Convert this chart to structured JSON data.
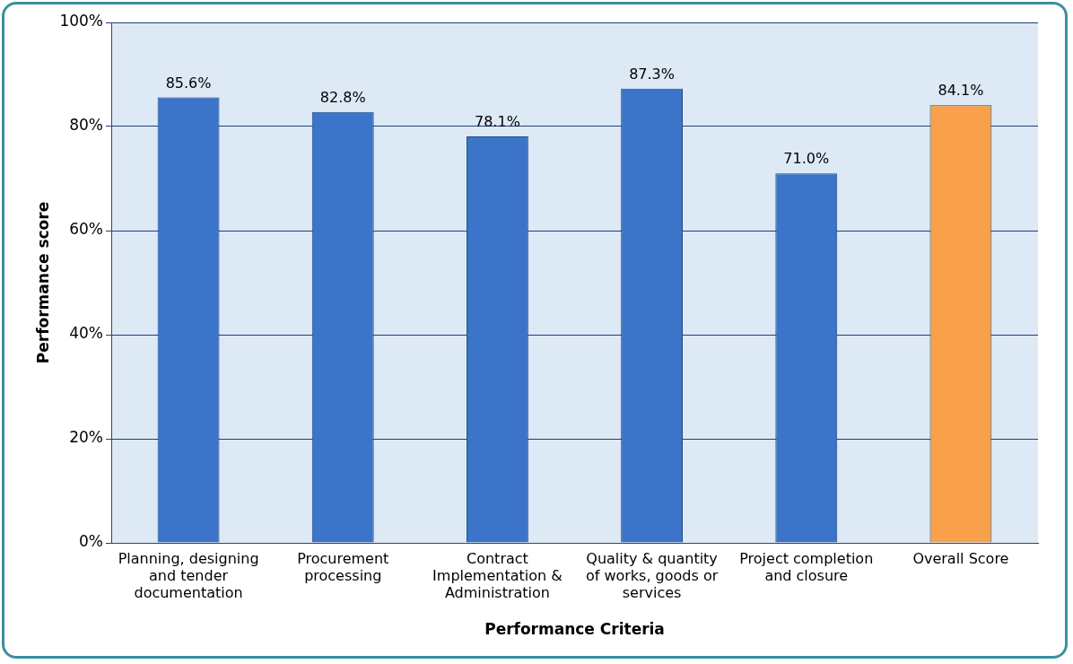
{
  "chart_data": {
    "type": "bar",
    "xlabel": "Performance Criteria",
    "ylabel": "Performance score",
    "categories": [
      "Planning, designing and tender documentation",
      "Procurement processing",
      "Contract Implementation & Administration",
      "Quality & quantity of works, goods or services",
      "Project completion and closure",
      "Overall Score"
    ],
    "values": [
      85.6,
      82.8,
      78.1,
      87.3,
      71.0,
      84.1
    ],
    "colors": [
      "#3b74c8",
      "#3b74c8",
      "#3b74c8",
      "#3b74c8",
      "#3b74c8",
      "#f9a04a"
    ],
    "value_labels": [
      "85.6%",
      "82.8%",
      "78.1%",
      "87.3%",
      "71.0%",
      "84.1%"
    ],
    "ylim": [
      0,
      100
    ],
    "yticks": [
      {
        "value": 0,
        "label": "0%"
      },
      {
        "value": 20,
        "label": "20%"
      },
      {
        "value": 40,
        "label": "40%"
      },
      {
        "value": 60,
        "label": "60%"
      },
      {
        "value": 80,
        "label": "80%"
      },
      {
        "value": 100,
        "label": "100%"
      }
    ],
    "grid": "y",
    "legend": false
  }
}
